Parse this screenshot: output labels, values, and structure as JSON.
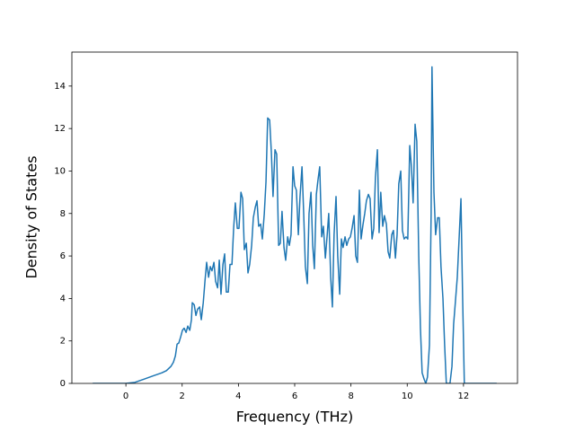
{
  "chart_data": {
    "type": "line",
    "xlabel": "Frequency (THz)",
    "ylabel": "Density of States",
    "color": "#1f77b4",
    "xlim": [
      -1.92,
      13.92
    ],
    "ylim": [
      0,
      15.6
    ],
    "xticks": [
      0,
      2,
      4,
      6,
      8,
      10,
      12
    ],
    "yticks": [
      0,
      2,
      4,
      6,
      8,
      10,
      12,
      14
    ],
    "x": [
      -1.18,
      0,
      0.32,
      0.64,
      0.96,
      1.28,
      1.44,
      1.6,
      1.69,
      1.76,
      1.82,
      1.88,
      1.95,
      2.01,
      2.07,
      2.14,
      2.2,
      2.27,
      2.33,
      2.36,
      2.43,
      2.49,
      2.55,
      2.62,
      2.68,
      2.75,
      2.81,
      2.87,
      2.94,
      3.0,
      3.06,
      3.13,
      3.19,
      3.26,
      3.32,
      3.38,
      3.45,
      3.51,
      3.57,
      3.64,
      3.7,
      3.77,
      3.83,
      3.89,
      3.96,
      4.02,
      4.09,
      4.15,
      4.21,
      4.28,
      4.34,
      4.4,
      4.47,
      4.53,
      4.6,
      4.66,
      4.72,
      4.79,
      4.85,
      4.92,
      4.98,
      5.04,
      5.11,
      5.17,
      5.23,
      5.3,
      5.36,
      5.43,
      5.49,
      5.55,
      5.62,
      5.68,
      5.75,
      5.81,
      5.87,
      5.94,
      6.0,
      6.06,
      6.13,
      6.19,
      6.26,
      6.32,
      6.38,
      6.45,
      6.51,
      6.58,
      6.64,
      6.7,
      6.77,
      6.83,
      6.89,
      6.96,
      7.02,
      7.09,
      7.15,
      7.21,
      7.28,
      7.34,
      7.4,
      7.47,
      7.53,
      7.6,
      7.66,
      7.72,
      7.79,
      7.85,
      7.92,
      7.98,
      8.04,
      8.11,
      8.17,
      8.23,
      8.3,
      8.36,
      8.43,
      8.49,
      8.55,
      8.62,
      8.68,
      8.75,
      8.81,
      8.87,
      8.94,
      9.0,
      9.06,
      9.13,
      9.19,
      9.26,
      9.32,
      9.38,
      9.45,
      9.51,
      9.58,
      9.64,
      9.7,
      9.77,
      9.83,
      9.89,
      9.96,
      10.02,
      10.09,
      10.15,
      10.21,
      10.28,
      10.34,
      10.41,
      10.47,
      10.53,
      10.6,
      10.66,
      10.72,
      10.79,
      10.85,
      10.88,
      10.95,
      11.01,
      11.08,
      11.14,
      11.2,
      11.27,
      11.33,
      11.39,
      11.52,
      11.59,
      11.65,
      11.71,
      11.78,
      11.84,
      11.91,
      11.97,
      12.03,
      13.18
    ],
    "values": [
      0,
      0,
      0.05,
      0.2,
      0.35,
      0.5,
      0.6,
      0.8,
      1.0,
      1.3,
      1.85,
      1.9,
      2.2,
      2.5,
      2.6,
      2.4,
      2.7,
      2.5,
      3.0,
      3.8,
      3.7,
      3.2,
      3.5,
      3.6,
      3.0,
      3.8,
      4.8,
      5.7,
      5.0,
      5.5,
      5.3,
      5.7,
      4.8,
      4.5,
      5.8,
      4.2,
      5.6,
      6.1,
      4.3,
      4.3,
      5.6,
      5.6,
      7.3,
      8.5,
      7.3,
      7.3,
      9.0,
      8.7,
      6.3,
      6.6,
      5.2,
      5.6,
      6.5,
      7.8,
      8.3,
      8.6,
      7.4,
      7.5,
      6.8,
      8.0,
      9.5,
      12.5,
      12.4,
      10.9,
      8.8,
      11.0,
      10.8,
      6.5,
      6.6,
      8.1,
      6.4,
      5.8,
      6.9,
      6.5,
      7.0,
      10.2,
      9.3,
      9.1,
      7.0,
      8.8,
      10.2,
      8.0,
      5.5,
      4.7,
      8.0,
      9.0,
      6.5,
      5.4,
      8.9,
      9.6,
      10.2,
      6.9,
      7.4,
      5.9,
      6.9,
      8.0,
      5.0,
      3.6,
      7.0,
      8.8,
      6.0,
      4.2,
      6.8,
      6.4,
      6.9,
      6.5,
      6.8,
      6.9,
      7.3,
      7.9,
      6.0,
      5.7,
      9.1,
      6.8,
      7.5,
      8.0,
      8.6,
      8.9,
      8.7,
      6.8,
      7.3,
      9.7,
      11.0,
      7.1,
      9.0,
      7.4,
      7.9,
      7.5,
      6.2,
      5.9,
      7.0,
      7.2,
      5.9,
      7.0,
      9.4,
      10.0,
      7.2,
      6.8,
      6.9,
      6.8,
      11.2,
      10.2,
      8.5,
      12.2,
      11.4,
      6.0,
      2.6,
      0.5,
      0.2,
      0,
      0.3,
      1.8,
      8.0,
      14.9,
      9.0,
      7.0,
      7.8,
      7.8,
      5.5,
      4.0,
      1.8,
      0,
      0,
      0.8,
      2.8,
      3.8,
      5.0,
      6.7,
      8.7,
      4.0,
      0,
      0
    ]
  }
}
